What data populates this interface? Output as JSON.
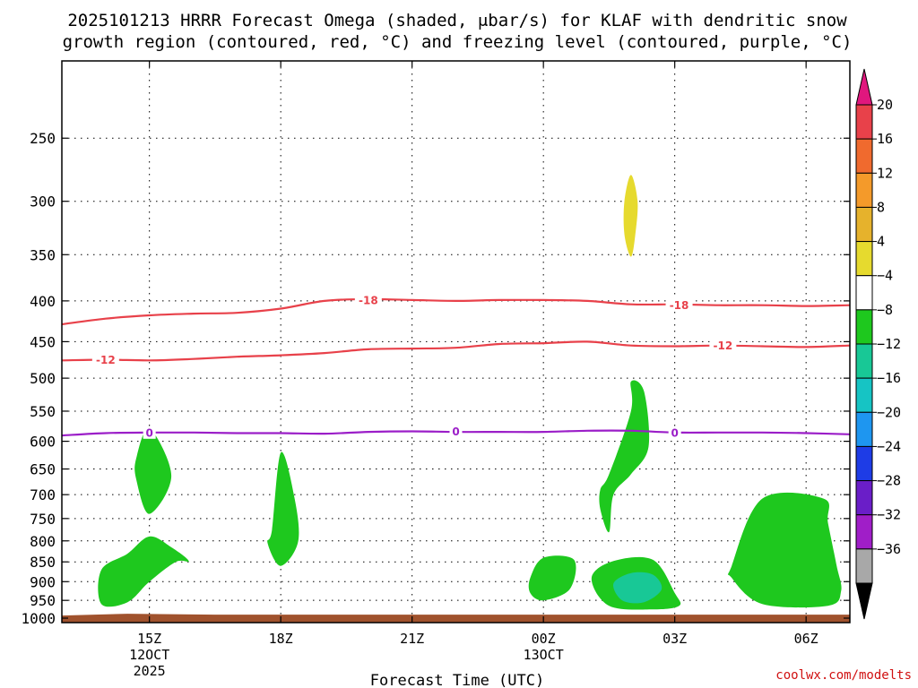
{
  "chart_data": {
    "type": "contour",
    "title_line1": "2025101213 HRRR Forecast Omega (shaded, μbar/s) for KLAF with dendritic snow",
    "title_line2": "growth region (contoured, red, °C) and freezing level (contoured, purple, °C)",
    "xlabel": "Forecast Time (UTC)",
    "credit": "coolwx.com/modelts",
    "x_ticks": [
      {
        "hour": 15,
        "label": "15Z",
        "sub1": "12OCT",
        "sub2": "2025"
      },
      {
        "hour": 18,
        "label": "18Z",
        "sub1": "",
        "sub2": ""
      },
      {
        "hour": 21,
        "label": "21Z",
        "sub1": "",
        "sub2": ""
      },
      {
        "hour": 24,
        "label": "00Z",
        "sub1": "13OCT",
        "sub2": ""
      },
      {
        "hour": 27,
        "label": "03Z",
        "sub1": "",
        "sub2": ""
      },
      {
        "hour": 30,
        "label": "06Z",
        "sub1": "",
        "sub2": ""
      }
    ],
    "x_range_hours": [
      13,
      31
    ],
    "y_ticks": [
      "250",
      "300",
      "350",
      "400",
      "450",
      "500",
      "550",
      "600",
      "650",
      "700",
      "750",
      "800",
      "850",
      "900",
      "950",
      "1000"
    ],
    "y_range_hpa": [
      200,
      1013
    ],
    "colorbar": {
      "ticks": [
        "20",
        "16",
        "12",
        "8",
        "4",
        "−4",
        "−8",
        "−12",
        "−16",
        "−20",
        "−24",
        "−28",
        "−32",
        "−36"
      ],
      "colors": [
        "#e8414a",
        "#f06a2e",
        "#f49a2a",
        "#e6b22c",
        "#e6da2e",
        "#ffffff",
        "#1ec81e",
        "#18c896",
        "#16c4c4",
        "#1e96f0",
        "#1e3ce6",
        "#6a1ec8",
        "#a01ec8",
        "#a8a8a8"
      ],
      "top_arrow_color": "#e0177e",
      "bottom_arrow_color": "#000000"
    },
    "ground_color": "#a0522d",
    "dendritic_color": "#e8414a",
    "freezing_color": "#9b1ec8",
    "isotherms": [
      {
        "label": "-18",
        "color": "#e8414a",
        "label_positions": [
          {
            "hour": 20.0,
            "hpa": 399
          },
          {
            "hour": 27.1,
            "hpa": 405
          }
        ],
        "points": [
          [
            13,
            428
          ],
          [
            14,
            421
          ],
          [
            15,
            417
          ],
          [
            16,
            415
          ],
          [
            17,
            414
          ],
          [
            18,
            409
          ],
          [
            19,
            400
          ],
          [
            20,
            398
          ],
          [
            21,
            399
          ],
          [
            22,
            400
          ],
          [
            23,
            399
          ],
          [
            24,
            399
          ],
          [
            25,
            400
          ],
          [
            26,
            404
          ],
          [
            27,
            404
          ],
          [
            28,
            405
          ],
          [
            29,
            405
          ],
          [
            30,
            406
          ],
          [
            31,
            405
          ]
        ]
      },
      {
        "label": "-12",
        "color": "#e8414a",
        "label_positions": [
          {
            "hour": 14.0,
            "hpa": 474
          },
          {
            "hour": 28.1,
            "hpa": 455
          }
        ],
        "points": [
          [
            13,
            475
          ],
          [
            14,
            474
          ],
          [
            15,
            475
          ],
          [
            16,
            473
          ],
          [
            17,
            470
          ],
          [
            18,
            468
          ],
          [
            19,
            465
          ],
          [
            20,
            460
          ],
          [
            21,
            459
          ],
          [
            22,
            458
          ],
          [
            23,
            453
          ],
          [
            24,
            452
          ],
          [
            25,
            450
          ],
          [
            26,
            455
          ],
          [
            27,
            456
          ],
          [
            28,
            455
          ],
          [
            29,
            456
          ],
          [
            30,
            457
          ],
          [
            31,
            455
          ]
        ]
      },
      {
        "label": "0",
        "color": "#9b1ec8",
        "label_positions": [
          {
            "hour": 15.0,
            "hpa": 585
          },
          {
            "hour": 22.0,
            "hpa": 583
          },
          {
            "hour": 27.0,
            "hpa": 585
          }
        ],
        "points": [
          [
            13,
            590
          ],
          [
            14,
            586
          ],
          [
            15,
            585
          ],
          [
            16,
            585
          ],
          [
            17,
            586
          ],
          [
            18,
            586
          ],
          [
            19,
            587
          ],
          [
            20,
            584
          ],
          [
            21,
            583
          ],
          [
            22,
            584
          ],
          [
            23,
            584
          ],
          [
            24,
            584
          ],
          [
            25,
            582
          ],
          [
            26,
            582
          ],
          [
            27,
            585
          ],
          [
            28,
            585
          ],
          [
            29,
            585
          ],
          [
            30,
            586
          ],
          [
            31,
            588
          ]
        ]
      }
    ],
    "omega_regions": [
      {
        "value_bin": "-4 to -8",
        "color": "#1ec81e",
        "points": [
          [
            15.0,
            578
          ],
          [
            15.5,
            663
          ],
          [
            15.0,
            740
          ],
          [
            14.7,
            670
          ],
          [
            14.7,
            630
          ]
        ]
      },
      {
        "value_bin": "-4 to -8",
        "color": "#1ec81e",
        "points": [
          [
            13.9,
            870
          ],
          [
            14.5,
            830
          ],
          [
            15.0,
            790
          ],
          [
            15.5,
            815
          ],
          [
            15.9,
            848
          ],
          [
            15.6,
            850
          ],
          [
            15.0,
            900
          ],
          [
            14.5,
            955
          ],
          [
            13.9,
            960
          ]
        ]
      },
      {
        "value_bin": "-4 to -8",
        "color": "#1ec81e",
        "points": [
          [
            17.8,
            775
          ],
          [
            18.0,
            620
          ],
          [
            18.3,
            700
          ],
          [
            18.4,
            800
          ],
          [
            18.0,
            860
          ],
          [
            17.7,
            805
          ]
        ]
      },
      {
        "value_bin": "-4 to -8",
        "color": "#1ec81e",
        "points": [
          [
            23.7,
            890
          ],
          [
            24.0,
            840
          ],
          [
            24.7,
            845
          ],
          [
            24.6,
            920
          ],
          [
            24.0,
            950
          ],
          [
            23.7,
            930
          ]
        ]
      },
      {
        "value_bin": "-4 to -8",
        "color": "#1ec81e",
        "points": [
          [
            25.5,
            660
          ],
          [
            26.0,
            550
          ],
          [
            26.0,
            505
          ],
          [
            26.3,
            520
          ],
          [
            26.4,
            610
          ],
          [
            26.0,
            660
          ],
          [
            25.6,
            700
          ],
          [
            25.5,
            780
          ],
          [
            25.3,
            730
          ],
          [
            25.3,
            690
          ]
        ]
      },
      {
        "value_bin": "-4 to -8",
        "color": "#1ec81e",
        "points": [
          [
            25.1,
            890
          ],
          [
            25.6,
            848
          ],
          [
            26.5,
            845
          ],
          [
            27.0,
            930
          ],
          [
            27.1,
            965
          ],
          [
            26.5,
            975
          ],
          [
            25.5,
            965
          ]
        ]
      },
      {
        "value_bin": "-8 to -12",
        "color": "#18c896",
        "points": [
          [
            25.6,
            905
          ],
          [
            26.0,
            878
          ],
          [
            26.5,
            882
          ],
          [
            26.7,
            920
          ],
          [
            26.3,
            955
          ],
          [
            25.8,
            950
          ]
        ]
      },
      {
        "value_bin": "4 to 8",
        "color": "#e6da2e",
        "points": [
          [
            26.0,
            278
          ],
          [
            26.15,
            300
          ],
          [
            26.1,
            330
          ],
          [
            26.0,
            352
          ],
          [
            25.85,
            330
          ],
          [
            25.85,
            300
          ]
        ]
      },
      {
        "value_bin": "-4 to -8",
        "color": "#1ec81e",
        "points": [
          [
            28.3,
            860
          ],
          [
            29.0,
            708
          ],
          [
            30.4,
            708
          ],
          [
            30.5,
            760
          ],
          [
            30.7,
            860
          ],
          [
            30.8,
            925
          ],
          [
            30.5,
            965
          ],
          [
            29.0,
            960
          ],
          [
            28.3,
            890
          ]
        ]
      }
    ]
  }
}
